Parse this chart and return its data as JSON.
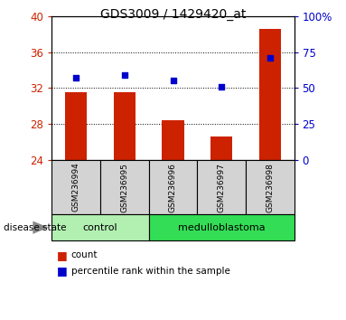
{
  "title": "GDS3009 / 1429420_at",
  "samples": [
    "GSM236994",
    "GSM236995",
    "GSM236996",
    "GSM236997",
    "GSM236998"
  ],
  "bar_values": [
    31.5,
    31.5,
    28.4,
    26.6,
    38.6
  ],
  "percentile_values": [
    57,
    59,
    55,
    51,
    71
  ],
  "bar_color": "#cc2200",
  "percentile_color": "#0000cc",
  "ylim_left": [
    24,
    40
  ],
  "yticks_left": [
    24,
    28,
    32,
    36,
    40
  ],
  "ylim_right": [
    0,
    100
  ],
  "yticks_right": [
    0,
    25,
    50,
    75,
    100
  ],
  "group_colors_control": "#b2f0b2",
  "group_colors_medulloblastoma": "#33dd55",
  "label_count": "count",
  "label_percentile": "percentile rank within the sample",
  "disease_state_label": "disease state"
}
